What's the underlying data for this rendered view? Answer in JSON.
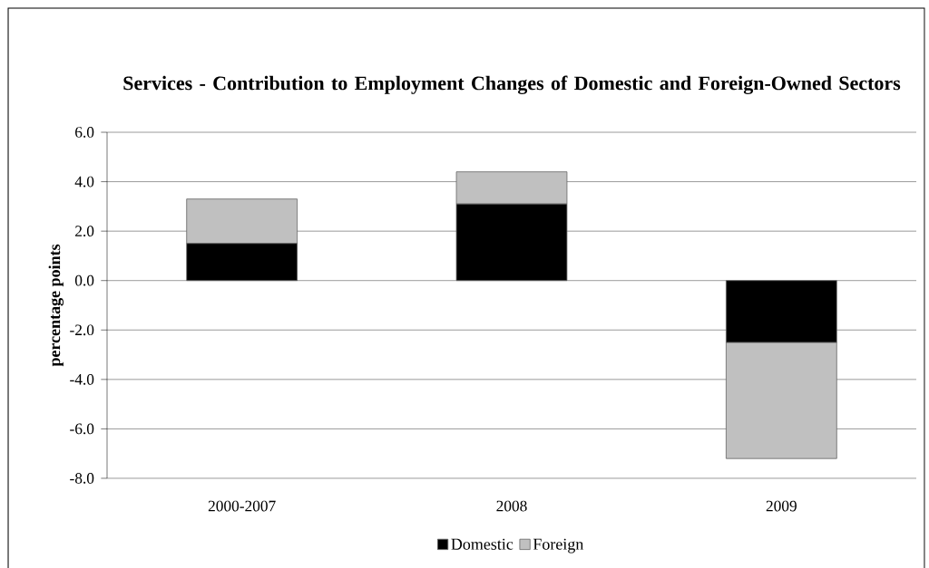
{
  "chart_data": {
    "type": "bar",
    "title": "Services - Contribution to Employment Changes of Domestic and Foreign-Owned Sectors",
    "ylabel": "percentage points",
    "categories": [
      "2000-2007",
      "2008",
      "2009"
    ],
    "series": [
      {
        "name": "Domestic",
        "color": "#000000",
        "values": [
          1.5,
          3.1,
          -2.5
        ]
      },
      {
        "name": "Foreign",
        "color": "#c0c0c0",
        "values": [
          1.8,
          1.3,
          -4.7
        ]
      }
    ],
    "stacked": true,
    "ylim": [
      -8,
      6
    ],
    "yticks": [
      {
        "value": -8,
        "label": "-8.0"
      },
      {
        "value": -6,
        "label": "-6.0"
      },
      {
        "value": -4,
        "label": "-4.0"
      },
      {
        "value": -2,
        "label": "-2.0"
      },
      {
        "value": 0,
        "label": "0.0"
      },
      {
        "value": 2,
        "label": "2.0"
      },
      {
        "value": 4,
        "label": "4.0"
      },
      {
        "value": 6,
        "label": "6.0"
      }
    ],
    "grid": "y",
    "legend": "bottom"
  }
}
